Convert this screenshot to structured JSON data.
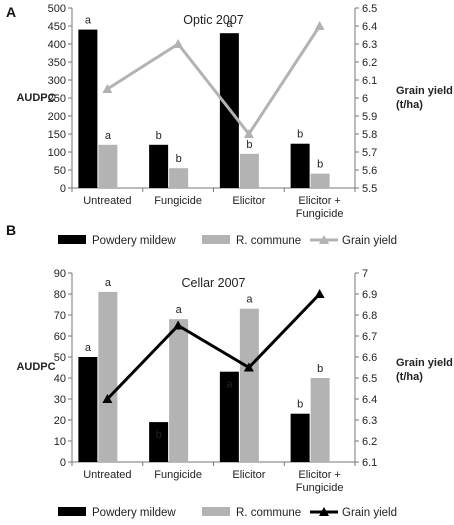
{
  "chart_data": [
    {
      "panel_label": "A",
      "type": "bar",
      "title": "Optic 2007",
      "categories": [
        "Untreated",
        "Fungicide",
        "Elicitor",
        "Elicitor +\nFungicide"
      ],
      "series": [
        {
          "name": "Powdery mildew",
          "color": "#000000",
          "axis": "left",
          "values": [
            440,
            120,
            430,
            123
          ]
        },
        {
          "name": "R. commune",
          "color": "#b3b3b3",
          "axis": "left",
          "values": [
            120,
            55,
            95,
            40
          ]
        }
      ],
      "line_series": {
        "name": "Grain yield",
        "color": "#b3b3b3",
        "marker": "triangle",
        "axis": "right",
        "values": [
          6.05,
          6.3,
          5.8,
          6.4
        ]
      },
      "bar_letters": [
        [
          "a",
          "b",
          "a",
          "b"
        ],
        [
          "a",
          "b",
          "b",
          "b"
        ]
      ],
      "ylabel": "AUDPC",
      "y2label": "Grain yield\n(t/ha)",
      "ylim": [
        0,
        500
      ],
      "yticks": [
        "0",
        "50",
        "100",
        "150",
        "200",
        "250",
        "300",
        "350",
        "400",
        "450",
        "500"
      ],
      "y2lim": [
        5.5,
        6.5
      ],
      "y2ticks": [
        "5.5",
        "5.6",
        "5.7",
        "5.8",
        "5.9",
        "6",
        "6.1",
        "6.2",
        "6.3",
        "6.4",
        "6.5"
      ],
      "legend": [
        "Powdery mildew",
        "R. commune",
        "Grain yield"
      ]
    },
    {
      "panel_label": "B",
      "type": "bar",
      "title": "Cellar 2007",
      "categories": [
        "Untreated",
        "Fungicide",
        "Elicitor",
        "Elicitor +\nFungicide"
      ],
      "series": [
        {
          "name": "Powdery mildew",
          "color": "#000000",
          "axis": "left",
          "values": [
            50,
            19,
            43,
            23
          ]
        },
        {
          "name": "R. commune",
          "color": "#b3b3b3",
          "axis": "left",
          "values": [
            81,
            68,
            73,
            40
          ]
        }
      ],
      "line_series": {
        "name": "Grain yield",
        "color": "#000000",
        "marker": "triangle",
        "axis": "right",
        "values": [
          6.4,
          6.75,
          6.55,
          6.9
        ]
      },
      "bar_letters": [
        [
          "a",
          "b",
          "a",
          "b"
        ],
        [
          "a",
          "a",
          "a",
          "b"
        ]
      ],
      "ylabel": "AUDPC",
      "y2label": "Grain yield\n(t/ha)",
      "ylim": [
        0,
        90
      ],
      "yticks": [
        "0",
        "10",
        "20",
        "30",
        "40",
        "50",
        "60",
        "70",
        "80",
        "90"
      ],
      "y2lim": [
        6.1,
        7
      ],
      "y2ticks": [
        "6.1",
        "6.2",
        "6.3",
        "6.4",
        "6.5",
        "6.6",
        "6.7",
        "6.8",
        "6.9",
        "7"
      ],
      "legend": [
        "Powdery mildew",
        "R. commune",
        "Grain yield"
      ]
    }
  ]
}
